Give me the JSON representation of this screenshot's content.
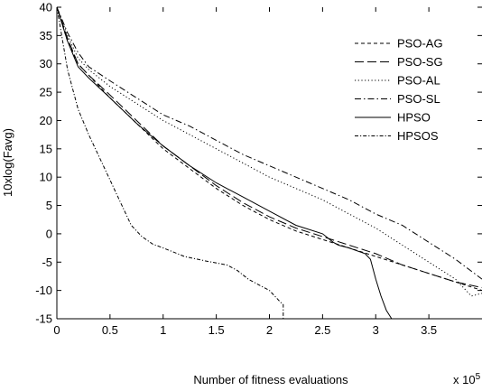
{
  "chart_data": {
    "type": "line",
    "title": "",
    "xlabel": "Number of fitness evaluations",
    "ylabel": "10xlog(Favg)",
    "x_multiplier_label": "x 10",
    "x_multiplier_exponent": "5",
    "xlim": [
      0,
      4
    ],
    "ylim": [
      -15,
      40
    ],
    "xticks": [
      "0",
      "0.5",
      "1",
      "1.5",
      "2",
      "2.5",
      "3",
      "3.5"
    ],
    "yticks": [
      "-15",
      "-10",
      "-5",
      "0",
      "5",
      "10",
      "15",
      "20",
      "25",
      "30",
      "35",
      "40"
    ],
    "grid": false,
    "legend_position": "top-right",
    "series": [
      {
        "name": "PSO-AG",
        "dash": "dashed",
        "x": [
          0,
          0.1,
          0.2,
          0.3,
          0.5,
          0.75,
          1.0,
          1.25,
          1.5,
          1.75,
          2.0,
          2.25,
          2.5,
          2.75,
          3.0,
          3.25,
          3.5,
          3.75,
          4.0
        ],
        "y": [
          40,
          34,
          30,
          28,
          24,
          19.5,
          15,
          11.5,
          8,
          5,
          2.5,
          0.5,
          -1,
          -2.5,
          -4,
          -5.5,
          -7,
          -8.5,
          -10
        ]
      },
      {
        "name": "PSO-SG",
        "dash": "longdash",
        "x": [
          0,
          0.1,
          0.2,
          0.3,
          0.5,
          0.75,
          1.0,
          1.25,
          1.5,
          1.75,
          2.0,
          2.25,
          2.5,
          2.75,
          3.0,
          3.25,
          3.5,
          3.75,
          4.0
        ],
        "y": [
          40,
          34.5,
          30,
          28,
          24.5,
          20,
          15.5,
          12,
          8.5,
          5.5,
          3,
          1,
          -0.5,
          -2,
          -3.5,
          -5.5,
          -7,
          -8.5,
          -9.5
        ]
      },
      {
        "name": "PSO-AL",
        "dash": "dotted",
        "x": [
          0,
          0.1,
          0.2,
          0.3,
          0.5,
          0.75,
          1.0,
          1.25,
          1.5,
          1.75,
          2.0,
          2.25,
          2.5,
          2.75,
          3.0,
          3.25,
          3.5,
          3.75,
          3.9,
          4.0
        ],
        "y": [
          40,
          35,
          31,
          29,
          26,
          23,
          20,
          17.5,
          15,
          12.5,
          10,
          8,
          6,
          3.5,
          1,
          -2,
          -5,
          -8,
          -11,
          -10.5
        ]
      },
      {
        "name": "PSO-SL",
        "dash": "dashdot",
        "x": [
          0,
          0.1,
          0.2,
          0.3,
          0.5,
          0.75,
          1.0,
          1.25,
          1.5,
          1.75,
          2.0,
          2.25,
          2.5,
          2.75,
          3.0,
          3.25,
          3.5,
          3.75,
          4.0
        ],
        "y": [
          40,
          35.5,
          32,
          29.5,
          27,
          24,
          21,
          19,
          16.5,
          14,
          12,
          10,
          8,
          6,
          3.5,
          1.5,
          -1.5,
          -4.5,
          -8
        ]
      },
      {
        "name": "HPSO",
        "dash": "solid",
        "x": [
          0,
          0.1,
          0.2,
          0.3,
          0.5,
          0.75,
          1.0,
          1.25,
          1.5,
          1.75,
          2.0,
          2.25,
          2.5,
          2.6,
          2.65,
          2.75,
          2.9,
          2.95,
          3.0,
          3.05,
          3.1,
          3.15
        ],
        "y": [
          40,
          34,
          29.5,
          27.5,
          24,
          19.5,
          15.5,
          12,
          9,
          6.5,
          4,
          1.5,
          0,
          -1.5,
          -2,
          -2.5,
          -3.5,
          -4.5,
          -8,
          -11,
          -13.5,
          -15
        ]
      },
      {
        "name": "HPSOS",
        "dash": "dashdot-fine",
        "x": [
          0,
          0.1,
          0.2,
          0.3,
          0.4,
          0.5,
          0.6,
          0.7,
          0.8,
          0.9,
          1.0,
          1.2,
          1.4,
          1.6,
          1.7,
          1.8,
          1.9,
          2.0,
          2.1,
          2.13,
          2.13
        ],
        "y": [
          40,
          29,
          22,
          17.5,
          13.5,
          9.5,
          5.5,
          1.5,
          -0.5,
          -1.8,
          -2.5,
          -4,
          -4.8,
          -5.5,
          -6.5,
          -8,
          -9,
          -10,
          -12,
          -12.5,
          -15
        ]
      }
    ]
  }
}
